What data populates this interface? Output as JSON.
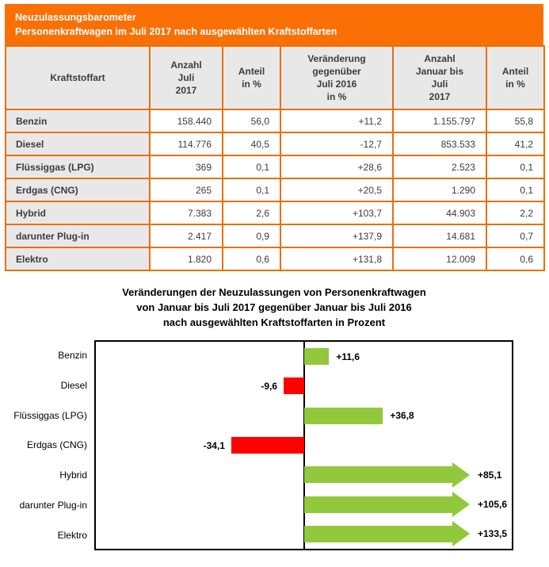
{
  "banner": {
    "title": "Neuzulassungsbarometer",
    "subtitle": "Personenkraftwagen im Juli 2017 nach ausgewählten Kraftstoffarten"
  },
  "table": {
    "headers": [
      "Kraftstoffart",
      "Anzahl\nJuli\n2017",
      "Anteil\nin %",
      "Veränderung\ngegenüber\nJuli 2016\nin %",
      "Anzahl\nJanuar bis\nJuli\n2017",
      "Anteil\nin %"
    ],
    "rows": [
      {
        "label": "Benzin",
        "values": [
          "158.440",
          "56,0",
          "+11,2",
          "1.155.797",
          "55,8"
        ]
      },
      {
        "label": "Diesel",
        "values": [
          "114.776",
          "40,5",
          "-12,7",
          "853.533",
          "41,2"
        ]
      },
      {
        "label": "Flüssiggas (LPG)",
        "values": [
          "369",
          "0,1",
          "+28,6",
          "2.523",
          "0,1"
        ]
      },
      {
        "label": "Erdgas (CNG)",
        "values": [
          "265",
          "0,1",
          "+20,5",
          "1.290",
          "0,1"
        ]
      },
      {
        "label": "Hybrid",
        "values": [
          "7.383",
          "2,6",
          "+103,7",
          "44.903",
          "2,2"
        ]
      },
      {
        "label": "darunter Plug-in",
        "values": [
          "2.417",
          "0,9",
          "+137,9",
          "14.681",
          "0,7"
        ]
      },
      {
        "label": "Elektro",
        "values": [
          "1.820",
          "0,6",
          "+131,8",
          "12.009",
          "0,6"
        ]
      }
    ]
  },
  "chart_data": {
    "type": "bar",
    "orientation": "horizontal",
    "title_lines": [
      "Veränderungen der Neuzulassungen von Personenkraftwagen",
      "von Januar bis Juli 2017 gegenüber Januar bis Juli 2016",
      "nach ausgewählten Kraftstoffarten in Prozent"
    ],
    "categories": [
      "Benzin",
      "Diesel",
      "Flüssiggas (LPG)",
      "Erdgas (CNG)",
      "Hybrid",
      "darunter Plug-in",
      "Elektro"
    ],
    "values": [
      11.6,
      -9.6,
      36.8,
      -34.1,
      85.1,
      105.6,
      133.5
    ],
    "labels": [
      "+11,6",
      "-9,6",
      "+36,8",
      "-34,1",
      "+85,1",
      "+105,6",
      "+133,5"
    ],
    "xlim": [
      -98,
      98
    ],
    "grid": false,
    "legend": false,
    "bars_exceeding_axis_drawn_as_arrows": true,
    "positive_color": "#92c83c",
    "negative_color": "#ff0000"
  },
  "colors": {
    "banner_orange": "#fa7005",
    "table_border_orange": "#e8700a",
    "header_gray": "#e8e8e8",
    "text_dark": "#3c3c3c"
  }
}
